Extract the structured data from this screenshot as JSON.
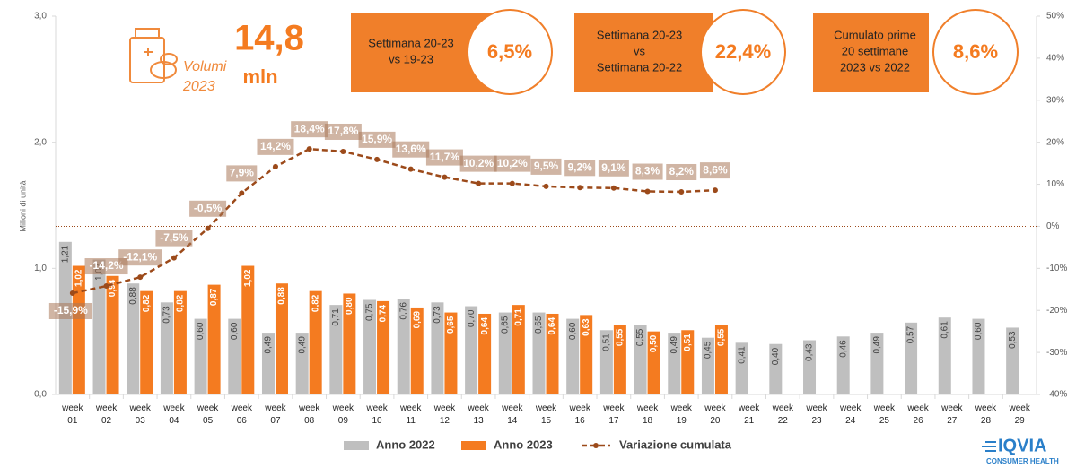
{
  "chart_data": {
    "type": "bar",
    "categories": [
      "week 01",
      "week 02",
      "week 03",
      "week 04",
      "week 05",
      "week 06",
      "week 07",
      "week 08",
      "week 09",
      "week 10",
      "week 11",
      "week 12",
      "week 13",
      "week 14",
      "week 15",
      "week 16",
      "week 17",
      "week 18",
      "week 19",
      "week 20",
      "week 21",
      "week 22",
      "week 23",
      "week 24",
      "week 25",
      "week 26",
      "week 27",
      "week 28",
      "week 29"
    ],
    "y_label": "Milioni di unità",
    "ylim": [
      0,
      3
    ],
    "yticks": [
      {
        "value": 0,
        "label": "0,0"
      },
      {
        "value": 1,
        "label": "1,0"
      },
      {
        "value": 2,
        "label": "2,0"
      },
      {
        "value": 3,
        "label": "3,0"
      }
    ],
    "y2lim": [
      -40,
      50
    ],
    "y2ticks": [
      {
        "value": -40,
        "label": "-40%"
      },
      {
        "value": -30,
        "label": "-30%"
      },
      {
        "value": -20,
        "label": "-20%"
      },
      {
        "value": -10,
        "label": "-10%"
      },
      {
        "value": 0,
        "label": "0%"
      },
      {
        "value": 10,
        "label": "10%"
      },
      {
        "value": 20,
        "label": "20%"
      },
      {
        "value": 30,
        "label": "30%"
      },
      {
        "value": 40,
        "label": "40%"
      },
      {
        "value": 50,
        "label": "50%"
      }
    ],
    "series": [
      {
        "name": "Anno 2022",
        "type": "bar",
        "color": "#bfbfbf",
        "values": [
          1.21,
          1.07,
          0.88,
          0.73,
          0.6,
          0.6,
          0.49,
          0.49,
          0.71,
          0.75,
          0.76,
          0.73,
          0.7,
          0.65,
          0.65,
          0.6,
          0.51,
          0.55,
          0.49,
          0.45,
          0.41,
          0.4,
          0.43,
          0.46,
          0.49,
          0.57,
          0.61,
          0.6,
          0.53
        ],
        "value_labels": [
          "1,21",
          "1,07",
          "0,88",
          "0,73",
          "0,60",
          "0,60",
          "0,49",
          "0,49",
          "0,71",
          "0,75",
          "0,76",
          "0,73",
          "0,70",
          "0,65",
          "0,65",
          "0,60",
          "0,51",
          "0,55",
          "0,49",
          "0,45",
          "0,41",
          "0,40",
          "0,43",
          "0,46",
          "0,49",
          "0,57",
          "0,61",
          "0,60",
          "0,53"
        ]
      },
      {
        "name": "Anno 2023",
        "type": "bar",
        "color": "#f47b20",
        "values": [
          1.02,
          0.94,
          0.82,
          0.82,
          0.87,
          1.02,
          0.88,
          0.82,
          0.8,
          0.74,
          0.69,
          0.65,
          0.64,
          0.71,
          0.64,
          0.63,
          0.55,
          0.5,
          0.51,
          0.55,
          null,
          null,
          null,
          null,
          null,
          null,
          null,
          null,
          null
        ],
        "value_labels": [
          "1,02",
          "0,94",
          "0,82",
          "0,82",
          "0,87",
          "1,02",
          "0,88",
          "0,82",
          "0,80",
          "0,74",
          "0,69",
          "0,65",
          "0,64",
          "0,71",
          "0,64",
          "0,63",
          "0,55",
          "0,50",
          "0,51",
          "0,55",
          null,
          null,
          null,
          null,
          null,
          null,
          null,
          null,
          null
        ]
      },
      {
        "name": "Variazione cumulata",
        "type": "line",
        "axis": "y2",
        "color": "#9c4a1a",
        "values": [
          -15.9,
          -14.2,
          -12.1,
          -7.5,
          -0.5,
          7.9,
          14.2,
          18.4,
          17.8,
          15.9,
          13.6,
          11.7,
          10.2,
          10.2,
          9.5,
          9.2,
          9.1,
          8.3,
          8.2,
          8.6,
          null,
          null,
          null,
          null,
          null,
          null,
          null,
          null,
          null
        ],
        "value_labels": [
          "-15,9%",
          "-14,2%",
          "-12,1%",
          "-7,5%",
          "-0,5%",
          "7,9%",
          "14,2%",
          "18,4%",
          "17,8%",
          "15,9%",
          "13,6%",
          "11,7%",
          "10,2%",
          "10,2%",
          "9,5%",
          "9,2%",
          "9,1%",
          "8,3%",
          "8,2%",
          "8,6%",
          null,
          null,
          null,
          null,
          null,
          null,
          null,
          null,
          null
        ]
      }
    ]
  },
  "header": {
    "volume_label": "Volumi",
    "volume_year": "2023",
    "volume_value": "14,8",
    "volume_unit": "mln",
    "boxes": [
      {
        "lines": [
          "Settimana 20-23",
          "vs 19-23"
        ],
        "value": "6,5%"
      },
      {
        "lines": [
          "Settimana 20-23",
          "vs",
          "Settimana 20-22"
        ],
        "value": "22,4%"
      },
      {
        "lines": [
          "Cumulato prime",
          "20 settimane",
          "2023 vs 2022"
        ],
        "value": "8,6%"
      }
    ]
  },
  "logo": {
    "name": "IQVIA",
    "subtitle": "CONSUMER HEALTH"
  }
}
